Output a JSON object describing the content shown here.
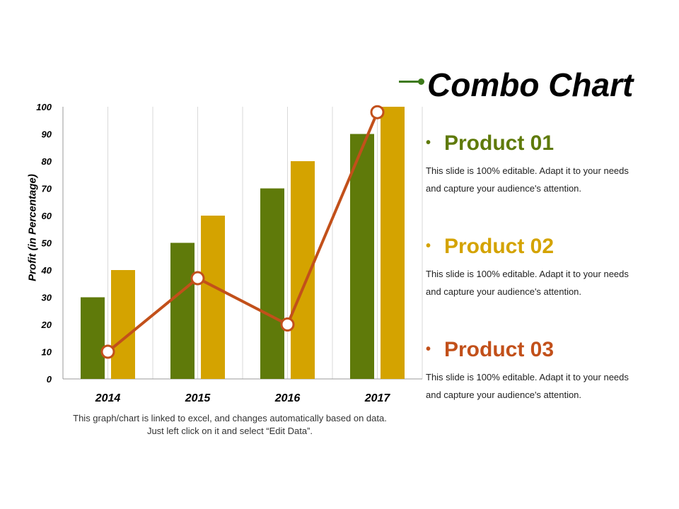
{
  "title": "Combo Chart",
  "colors": {
    "product01": "#5f7a0a",
    "product02": "#d4a300",
    "product03": "#c2501a",
    "title_accent": "#3d7a1a"
  },
  "products": [
    {
      "name": "Product 01",
      "bullet": "•",
      "color": "#5f7a0a",
      "desc": "This slide is 100% editable. Adapt it to your needs and capture your audience's attention."
    },
    {
      "name": "Product 02",
      "bullet": "•",
      "color": "#d4a300",
      "desc": "This slide is 100% editable. Adapt it to your needs and capture your audience's attention."
    },
    {
      "name": "Product 03",
      "bullet": "•",
      "color": "#c2501a",
      "desc": "This slide is 100% editable. Adapt it to your needs and capture your audience's attention."
    }
  ],
  "footnote": "This graph/chart is linked to excel, and changes automatically based on data. Just left click on it and select “Edit Data”.",
  "chart_data": {
    "type": "bar",
    "categories": [
      "2014",
      "2015",
      "2016",
      "2017"
    ],
    "series": [
      {
        "name": "Product 01",
        "kind": "bar",
        "color": "#5f7a0a",
        "values": [
          30,
          50,
          70,
          90
        ]
      },
      {
        "name": "Product 02",
        "kind": "bar",
        "color": "#d4a300",
        "values": [
          40,
          60,
          80,
          100
        ]
      },
      {
        "name": "Product 03",
        "kind": "line",
        "color": "#c2501a",
        "values": [
          10,
          37,
          20,
          98
        ]
      }
    ],
    "ylabel": "Profit (in Percentage)",
    "xlabel": "",
    "ylim": [
      0,
      100
    ],
    "yticks": [
      0,
      10,
      20,
      30,
      40,
      50,
      60,
      70,
      80,
      90,
      100
    ],
    "grid": "vertical"
  }
}
